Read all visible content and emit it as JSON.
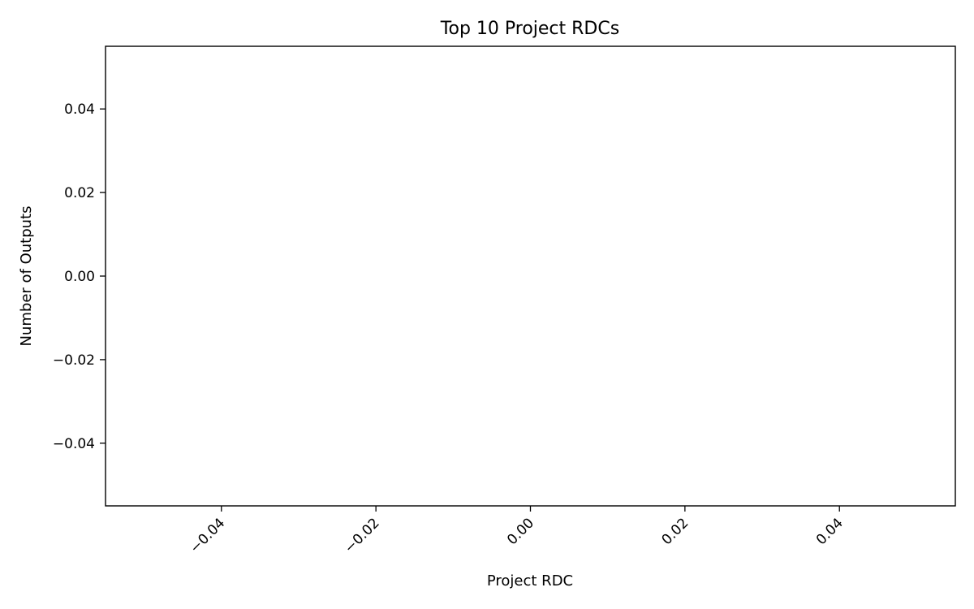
{
  "chart_data": {
    "type": "bar",
    "title": "Top 10 Project RDCs",
    "xlabel": "Project RDC",
    "ylabel": "Number of Outputs",
    "categories": [],
    "values": [],
    "xlim": [
      -0.055,
      0.055
    ],
    "ylim": [
      -0.055,
      0.055
    ],
    "xticks": [
      -0.04,
      -0.02,
      0.0,
      0.02,
      0.04
    ],
    "xtick_labels": [
      "−0.04",
      "−0.02",
      "0.00",
      "0.02",
      "0.04"
    ],
    "xtick_rotation": 45,
    "yticks": [
      0.04,
      0.02,
      0.0,
      -0.02,
      -0.04
    ],
    "ytick_labels": [
      "0.04",
      "0.02",
      "0.00",
      "−0.02",
      "−0.04"
    ],
    "grid": false,
    "legend": "none"
  }
}
